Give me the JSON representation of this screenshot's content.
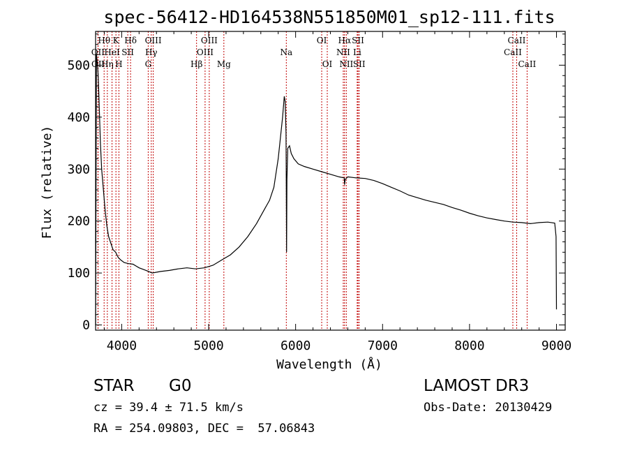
{
  "chart_data": {
    "type": "line",
    "title": "spec-56412-HD164538N551850M01_sp12-111.fits",
    "xlabel": "Wavelength (Å)",
    "ylabel": "Flux (relative)",
    "xlim": [
      3700,
      9100
    ],
    "ylim": [
      -10,
      565
    ],
    "xticks": [
      4000,
      5000,
      6000,
      7000,
      8000,
      9000
    ],
    "yticks": [
      0,
      100,
      200,
      300,
      400,
      500
    ],
    "grid": false,
    "series": [
      {
        "name": "flux",
        "x": [
          3700,
          3710,
          3720,
          3730,
          3740,
          3755,
          3770,
          3790,
          3810,
          3830,
          3850,
          3870,
          3900,
          3930,
          3960,
          3990,
          4030,
          4080,
          4130,
          4200,
          4280,
          4350,
          4450,
          4550,
          4650,
          4750,
          4850,
          4950,
          5050,
          5150,
          5250,
          5350,
          5450,
          5550,
          5650,
          5700,
          5750,
          5800,
          5850,
          5870,
          5880,
          5890,
          5893,
          5896,
          5900,
          5910,
          5930,
          5950,
          5980,
          6030,
          6100,
          6200,
          6300,
          6400,
          6500,
          6560,
          6563,
          6570,
          6600,
          6700,
          6800,
          6900,
          7000,
          7100,
          7200,
          7300,
          7400,
          7500,
          7600,
          7700,
          7800,
          7900,
          8000,
          8100,
          8200,
          8300,
          8400,
          8500,
          8600,
          8700,
          8800,
          8900,
          8980,
          8995,
          9000
        ],
        "y": [
          0,
          520,
          505,
          480,
          430,
          350,
          300,
          260,
          220,
          190,
          170,
          160,
          145,
          140,
          130,
          125,
          120,
          118,
          117,
          110,
          105,
          100,
          103,
          105,
          108,
          110,
          108,
          110,
          115,
          125,
          135,
          150,
          170,
          195,
          225,
          240,
          265,
          320,
          400,
          440,
          430,
          370,
          260,
          140,
          280,
          340,
          345,
          330,
          320,
          310,
          305,
          300,
          295,
          290,
          285,
          283,
          270,
          280,
          285,
          283,
          282,
          278,
          272,
          265,
          258,
          250,
          245,
          240,
          236,
          232,
          226,
          221,
          215,
          210,
          206,
          203,
          200,
          198,
          197,
          195,
          197,
          198,
          196,
          170,
          30
        ]
      }
    ],
    "line_labels": [
      {
        "label": "Hθ",
        "x": 3798,
        "row": 1
      },
      {
        "label": "K",
        "x": 3934,
        "row": 1
      },
      {
        "label": "Hδ",
        "x": 4102,
        "row": 1
      },
      {
        "label": "OIII",
        "x": 4363,
        "row": 1
      },
      {
        "label": "OIII",
        "x": 5007,
        "row": 1
      },
      {
        "label": "OI",
        "x": 6300,
        "row": 1
      },
      {
        "label": "Hα",
        "x": 6563,
        "row": 1
      },
      {
        "label": "SII",
        "x": 6717,
        "row": 1
      },
      {
        "label": "CaII",
        "x": 8542,
        "row": 1
      },
      {
        "label": "OII",
        "x": 3727,
        "row": 2
      },
      {
        "label": "HeI",
        "x": 3889,
        "row": 2
      },
      {
        "label": "SII",
        "x": 4070,
        "row": 2
      },
      {
        "label": "Hγ",
        "x": 4340,
        "row": 2
      },
      {
        "label": "OIII",
        "x": 4959,
        "row": 2
      },
      {
        "label": "Na",
        "x": 5893,
        "row": 2
      },
      {
        "label": "NII",
        "x": 6548,
        "row": 2
      },
      {
        "label": "Li",
        "x": 6708,
        "row": 2
      },
      {
        "label": "CaII",
        "x": 8498,
        "row": 2
      },
      {
        "label": "OII",
        "x": 3729,
        "row": 3
      },
      {
        "label": "Hη",
        "x": 3835,
        "row": 3
      },
      {
        "label": "H",
        "x": 3968,
        "row": 3
      },
      {
        "label": "G",
        "x": 4305,
        "row": 3
      },
      {
        "label": "Hβ",
        "x": 4861,
        "row": 3
      },
      {
        "label": "Mg",
        "x": 5175,
        "row": 3
      },
      {
        "label": "OI",
        "x": 6364,
        "row": 3
      },
      {
        "label": "NII",
        "x": 6583,
        "row": 3
      },
      {
        "label": "SII",
        "x": 6731,
        "row": 3
      },
      {
        "label": "CaII",
        "x": 8662,
        "row": 3
      }
    ]
  },
  "info": {
    "object_type": "STAR",
    "subclass": "G0",
    "survey": "LAMOST DR3",
    "cz": "cz = 39.4 ± 71.5 km/s",
    "obs_date": "Obs-Date: 20130429",
    "coords": "RA = 254.09803, DEC =  57.06843"
  }
}
